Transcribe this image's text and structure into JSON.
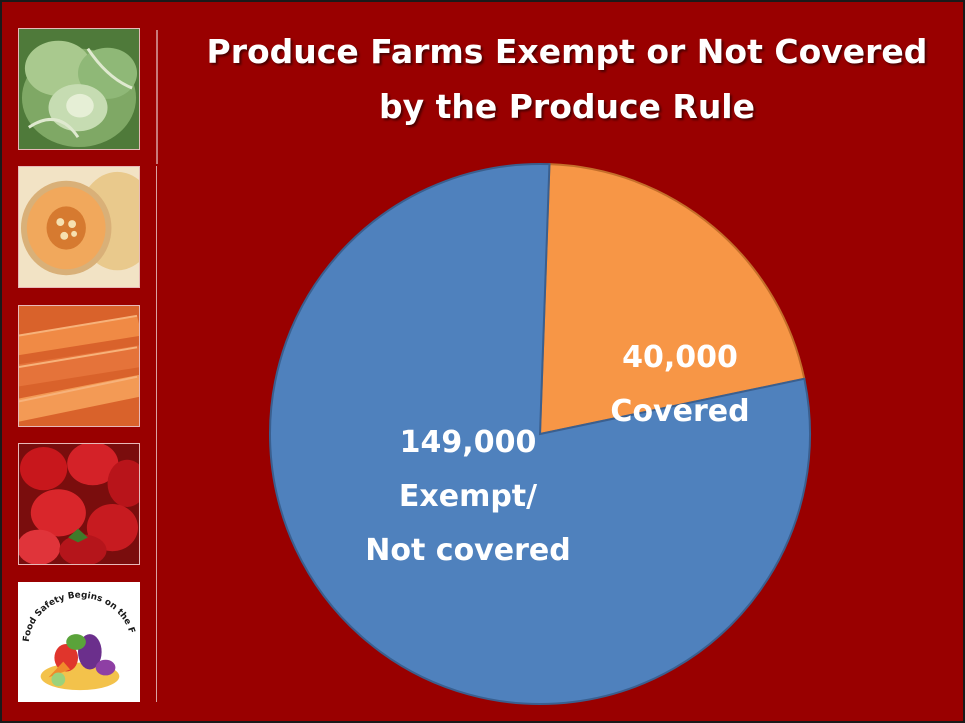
{
  "chart_data": {
    "type": "pie",
    "title": "Produce Farms Exempt or Not Covered by the Produce Rule",
    "title_lines": [
      "Produce Farms Exempt or Not Covered",
      "by the Produce Rule"
    ],
    "slices": [
      {
        "category": "Covered",
        "value": 40000,
        "label_lines": [
          "40,000",
          "Covered"
        ],
        "color": "#f79646"
      },
      {
        "category": "Exempt/ Not covered",
        "value": 149000,
        "label_lines": [
          "149,000",
          "Exempt/",
          "Not covered"
        ],
        "color": "#4f81bd"
      }
    ]
  },
  "sidebar": {
    "thumbnails": [
      {
        "name": "lettuce-image"
      },
      {
        "name": "cantaloupe-image"
      },
      {
        "name": "carrots-image"
      },
      {
        "name": "strawberries-image"
      },
      {
        "name": "food-safety-logo",
        "logo_text": "Food Safety Begins on the Farm"
      }
    ]
  },
  "colors": {
    "background": "#990000",
    "title_text": "#ffffff"
  }
}
